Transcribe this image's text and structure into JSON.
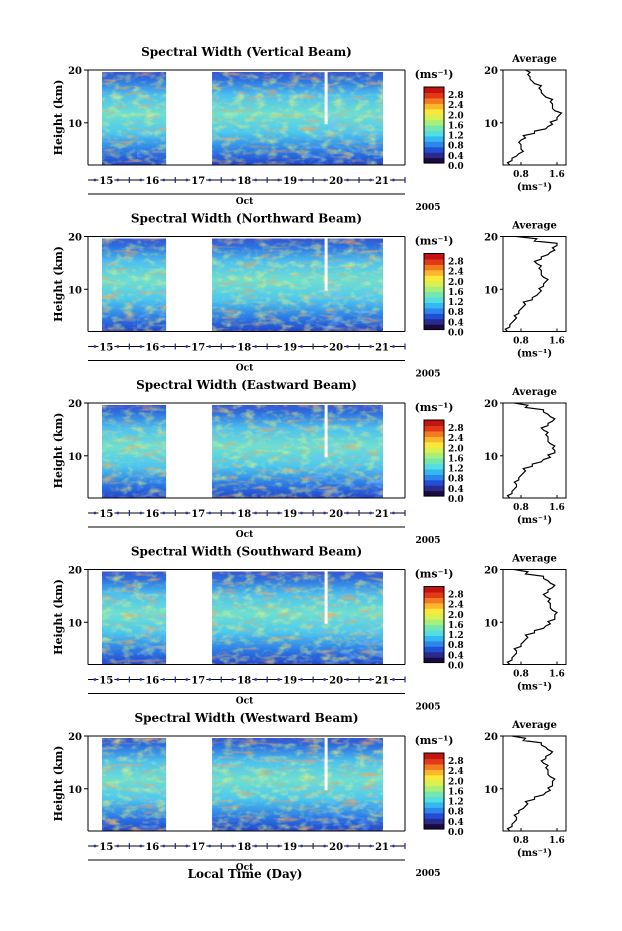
{
  "chart_data": {
    "type": "heatmap",
    "panels": [
      {
        "title": "Spectral Width (Vertical Beam)",
        "profile": [
          0.55,
          0.6,
          0.7,
          0.85,
          0.8,
          0.75,
          0.9,
          1.1,
          1.35,
          1.5,
          1.6,
          1.65,
          1.55,
          1.5,
          1.45,
          1.35,
          1.25,
          1.2,
          1.1,
          1.0,
          0.95,
          0.9
        ]
      },
      {
        "title": "Spectral Width (Northward Beam)",
        "profile": [
          0.5,
          0.55,
          0.6,
          0.7,
          0.75,
          0.8,
          0.9,
          1.05,
          1.15,
          1.25,
          1.3,
          1.35,
          1.3,
          1.25,
          1.2,
          1.15,
          1.25,
          1.4,
          1.55,
          1.6,
          1.1,
          0.7
        ]
      },
      {
        "title": "Spectral Width (Eastward Beam)",
        "profile": [
          0.55,
          0.6,
          0.65,
          0.7,
          0.75,
          0.8,
          0.9,
          1.05,
          1.25,
          1.45,
          1.55,
          1.5,
          1.45,
          1.4,
          1.35,
          1.3,
          1.4,
          1.5,
          1.45,
          1.3,
          0.9,
          0.65
        ]
      },
      {
        "title": "Spectral Width (Southward Beam)",
        "profile": [
          0.55,
          0.6,
          0.65,
          0.7,
          0.8,
          0.85,
          0.95,
          1.1,
          1.3,
          1.45,
          1.55,
          1.55,
          1.5,
          1.45,
          1.4,
          1.35,
          1.4,
          1.5,
          1.45,
          1.3,
          0.9,
          0.65
        ]
      },
      {
        "title": "Spectral Width (Westward Beam)",
        "profile": [
          0.55,
          0.6,
          0.65,
          0.7,
          0.75,
          0.85,
          0.95,
          1.1,
          1.3,
          1.45,
          1.5,
          1.5,
          1.45,
          1.4,
          1.35,
          1.3,
          1.35,
          1.45,
          1.4,
          1.25,
          0.85,
          0.6
        ]
      }
    ],
    "ylabel": "Height (km)",
    "yticks": [
      "20",
      "10"
    ],
    "ylim_km": [
      2,
      20
    ],
    "xlabel": "Local Time (Day)",
    "month_label": "Oct",
    "year_label": "2005",
    "day_labels": [
      "15",
      "16",
      "17",
      "18",
      "19",
      "20",
      "21"
    ],
    "data_gap_days": [
      16.3,
      17.3
    ],
    "colorbar": {
      "unit": "(ms⁻¹)",
      "ticks": [
        "2.8",
        "2.4",
        "2.0",
        "1.6",
        "1.2",
        "0.8",
        "0.4",
        "0.0"
      ],
      "range": [
        0.0,
        3.0
      ],
      "colors": [
        "#1a0a40",
        "#2a2a8c",
        "#1f4fd6",
        "#2e86ea",
        "#33b8f2",
        "#55dde0",
        "#74e6b0",
        "#a8ee7a",
        "#d8f050",
        "#fbe83a",
        "#fbb82c",
        "#f47a22",
        "#e03a18",
        "#c41410"
      ]
    },
    "average": {
      "title": "Average",
      "xlabel": "(ms⁻¹)",
      "xticks": [
        "0.8",
        "1.6"
      ],
      "xlim": [
        0.4,
        1.8
      ],
      "yticks": [
        "20",
        "10"
      ]
    }
  }
}
